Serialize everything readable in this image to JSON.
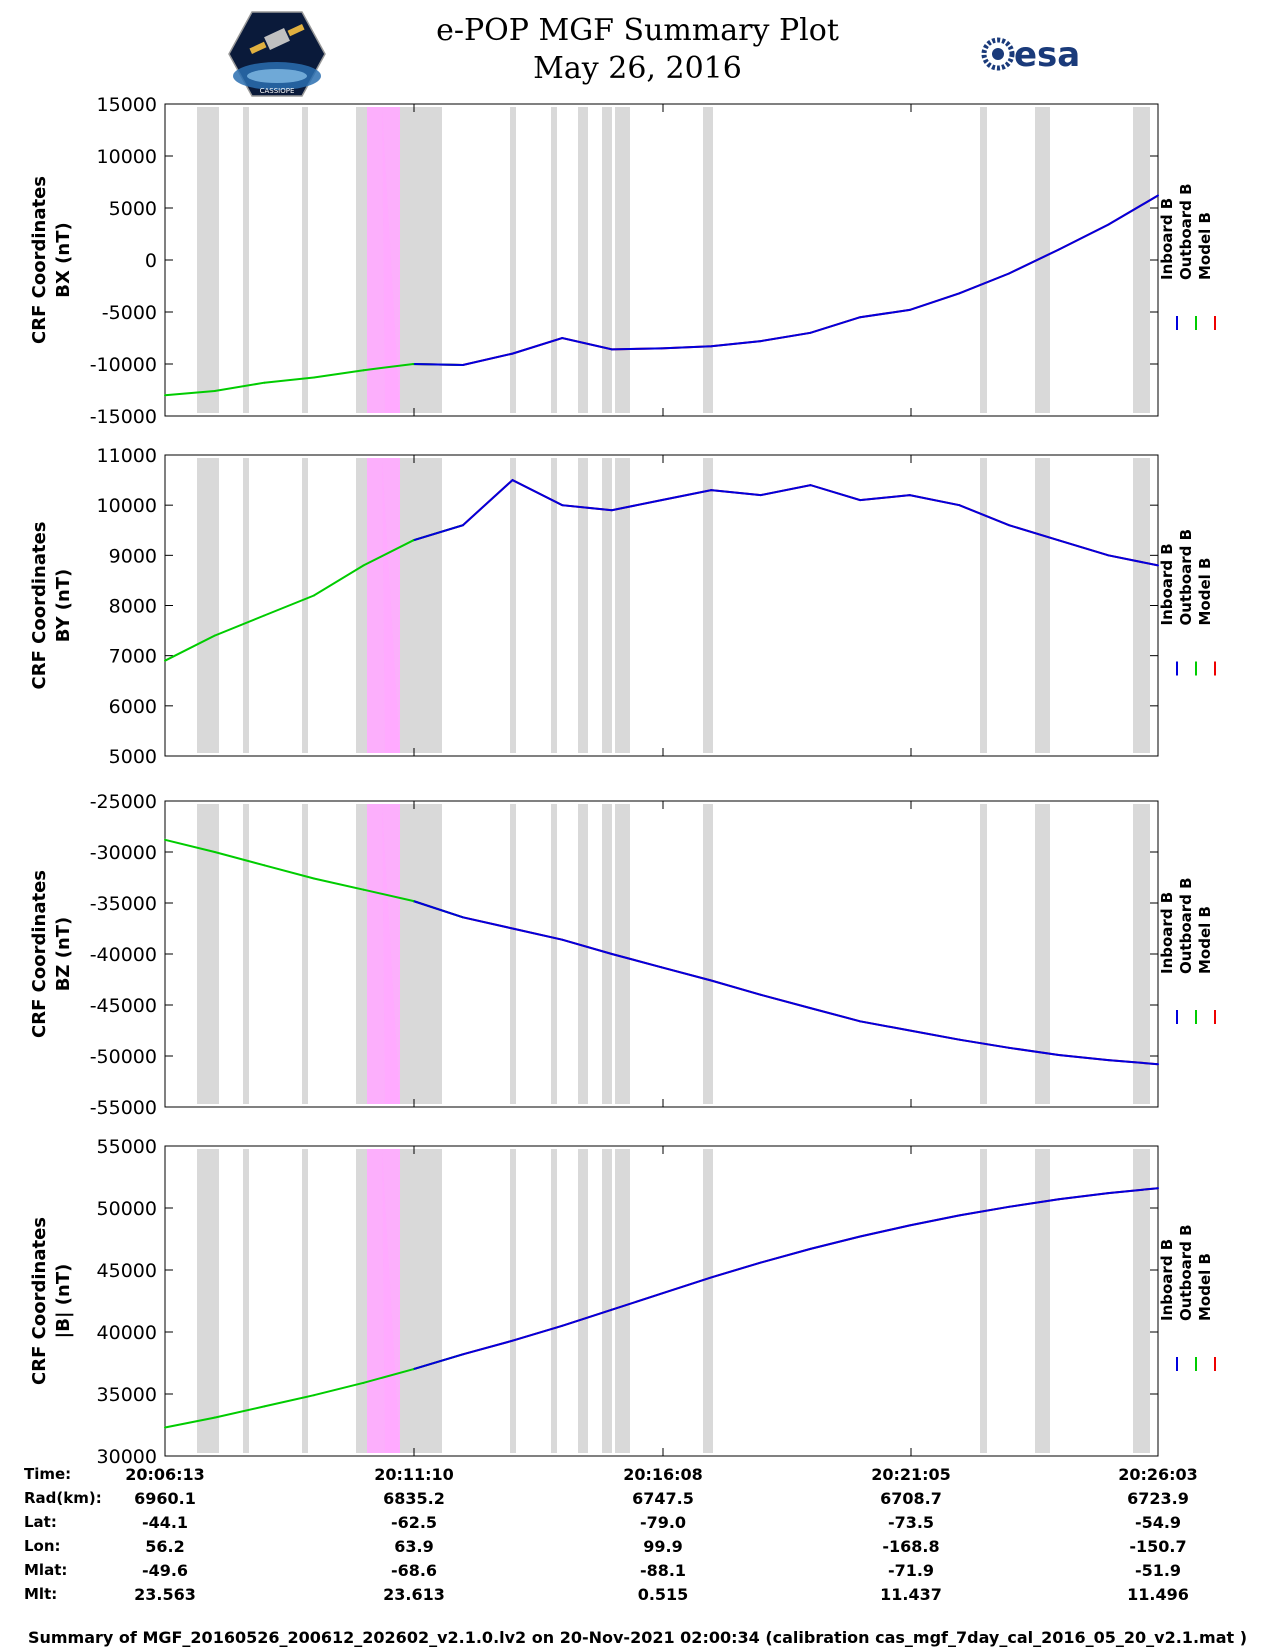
{
  "header": {
    "title": "e-POP MGF Summary Plot",
    "date": "May 26, 2016",
    "left_logo_text": "CASSIOPE",
    "right_logo_text": "esa"
  },
  "colors": {
    "inboard": "#0000dd",
    "outboard": "#00cc00",
    "model": "#ee0000",
    "gap": "#d9d9d9",
    "highlight": "#ffaaff"
  },
  "time_ticks": [
    "20:06:13",
    "20:11:10",
    "20:16:08",
    "20:21:05",
    "20:26:03"
  ],
  "legend": [
    "Inboard B",
    "Outboard B",
    "Model B"
  ],
  "chart_data": [
    {
      "type": "line",
      "ylabel": [
        "CRF Coordinates",
        "BX (nT)"
      ],
      "ylim": [
        -15000,
        15000
      ],
      "yticks": [
        15000,
        10000,
        5000,
        0,
        -5000,
        -10000,
        -15000
      ],
      "ytick_labels": [
        "15000",
        "10000",
        "5000",
        "0",
        "-5000",
        "-10000",
        "-15000"
      ],
      "x_minutes": [
        0,
        1,
        2,
        3,
        4,
        5,
        6,
        7,
        8,
        9,
        10,
        11,
        12,
        13,
        14,
        15,
        16,
        17,
        18,
        19,
        20
      ],
      "values": [
        -13000,
        -12600,
        -11800,
        -11300,
        -10600,
        -10000,
        -10100,
        -9000,
        -7500,
        -8600,
        -8500,
        -8300,
        -7800,
        -7000,
        -5500,
        -4800,
        -3200,
        -1300,
        1000,
        3400,
        6200
      ],
      "series": [
        {
          "name": "Inboard B"
        },
        {
          "name": "Outboard B"
        },
        {
          "name": "Model B"
        }
      ]
    },
    {
      "type": "line",
      "ylabel": [
        "CRF Coordinates",
        "BY (nT)"
      ],
      "ylim": [
        5000,
        11000
      ],
      "yticks": [
        11000,
        10000,
        9000,
        8000,
        7000,
        6000,
        5000
      ],
      "ytick_labels": [
        "11000",
        "10000",
        "9000",
        "8000",
        "7000",
        "6000",
        "5000"
      ],
      "x_minutes": [
        0,
        1,
        2,
        3,
        4,
        5,
        6,
        7,
        8,
        9,
        10,
        11,
        12,
        13,
        14,
        15,
        16,
        17,
        18,
        19,
        20
      ],
      "values": [
        6900,
        7400,
        7800,
        8200,
        8800,
        9300,
        9600,
        10500,
        10000,
        9900,
        10100,
        10300,
        10200,
        10400,
        10100,
        10200,
        10000,
        9600,
        9300,
        9000,
        8800
      ],
      "series": [
        {
          "name": "Inboard B"
        },
        {
          "name": "Outboard B"
        },
        {
          "name": "Model B"
        }
      ]
    },
    {
      "type": "line",
      "ylabel": [
        "CRF Coordinates",
        "BZ (nT)"
      ],
      "ylim": [
        -55000,
        -25000
      ],
      "yticks": [
        -25000,
        -30000,
        -35000,
        -40000,
        -45000,
        -50000,
        -55000
      ],
      "ytick_labels": [
        "-25000",
        "-30000",
        "-35000",
        "-40000",
        "-45000",
        "-50000",
        "-55000"
      ],
      "x_minutes": [
        0,
        1,
        2,
        3,
        4,
        5,
        6,
        7,
        8,
        9,
        10,
        11,
        12,
        13,
        14,
        15,
        16,
        17,
        18,
        19,
        20
      ],
      "values": [
        -28800,
        -30000,
        -31300,
        -32600,
        -33700,
        -34800,
        -36400,
        -37500,
        -38600,
        -40000,
        -41300,
        -42600,
        -44000,
        -45300,
        -46600,
        -47500,
        -48400,
        -49200,
        -49900,
        -50400,
        -50800
      ],
      "series": [
        {
          "name": "Inboard B"
        },
        {
          "name": "Outboard B"
        },
        {
          "name": "Model B"
        }
      ]
    },
    {
      "type": "line",
      "ylabel": [
        "CRF Coordinates",
        "|B| (nT)"
      ],
      "ylim": [
        30000,
        55000
      ],
      "yticks": [
        55000,
        50000,
        45000,
        40000,
        35000,
        30000
      ],
      "ytick_labels": [
        "55000",
        "50000",
        "45000",
        "40000",
        "35000",
        "30000"
      ],
      "x_minutes": [
        0,
        1,
        2,
        3,
        4,
        5,
        6,
        7,
        8,
        9,
        10,
        11,
        12,
        13,
        14,
        15,
        16,
        17,
        18,
        19,
        20
      ],
      "values": [
        32300,
        33100,
        34000,
        34900,
        35900,
        37000,
        38200,
        39300,
        40500,
        41800,
        43100,
        44400,
        45600,
        46700,
        47700,
        48600,
        49400,
        50100,
        50700,
        51200,
        51600
      ],
      "series": [
        {
          "name": "Inboard B"
        },
        {
          "name": "Outboard B"
        },
        {
          "name": "Model B"
        }
      ]
    }
  ],
  "footer": {
    "labels": [
      "Time:",
      "Rad(km):",
      "Lat:",
      "Lon:",
      "Mlat:",
      "Mlt:"
    ],
    "columns": [
      [
        "20:06:13",
        "6960.1",
        "-44.1",
        "56.2",
        "-49.6",
        "23.563"
      ],
      [
        "20:11:10",
        "6835.2",
        "-62.5",
        "63.9",
        "-68.6",
        "23.613"
      ],
      [
        "20:16:08",
        "6747.5",
        "-79.0",
        "99.9",
        "-88.1",
        "0.515"
      ],
      [
        "20:21:05",
        "6708.7",
        "-73.5",
        "-168.8",
        "-71.9",
        "11.437"
      ],
      [
        "20:26:03",
        "6723.9",
        "-54.9",
        "-150.7",
        "-51.9",
        "11.496"
      ]
    ],
    "note": "Summary of MGF_20160526_200612_202602_v2.1.0.lv2 on 20-Nov-2021 02:00:34 (calibration cas_mgf_7day_cal_2016_05_20_v2.1.mat )"
  }
}
